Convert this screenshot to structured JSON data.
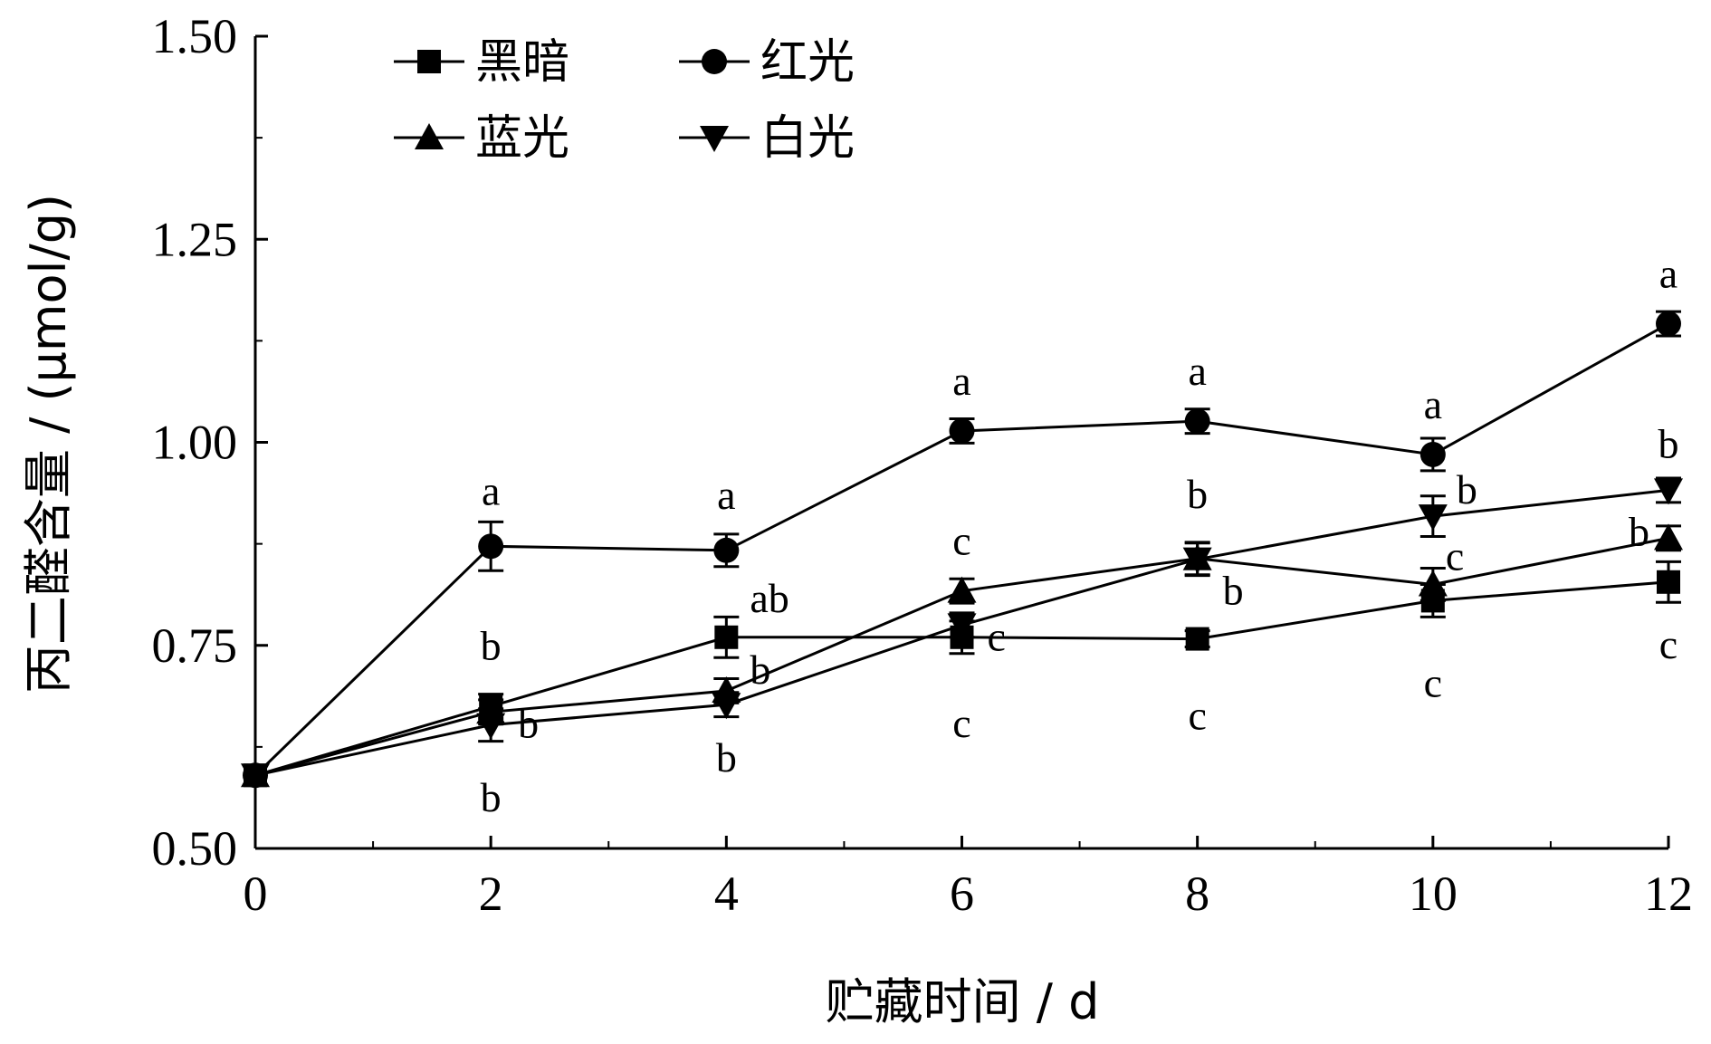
{
  "chart_data": {
    "type": "line",
    "xlabel": "贮藏时间 / d",
    "ylabel": "丙二醛含量 / (μmol/g)",
    "xlim": [
      0,
      12
    ],
    "ylim": [
      0.5,
      1.5
    ],
    "x_ticks": [
      "0",
      "2",
      "4",
      "6",
      "8",
      "10",
      "12"
    ],
    "y_ticks": [
      "0.50",
      "0.75",
      "1.00",
      "1.25",
      "1.50"
    ],
    "x": [
      0,
      2,
      4,
      6,
      8,
      10,
      12
    ],
    "grid": false,
    "legend_position": "top-left",
    "series": [
      {
        "name": "黑暗",
        "marker": "square",
        "values": [
          0.59,
          0.675,
          0.76,
          0.76,
          0.758,
          0.805,
          0.828
        ],
        "errors": [
          0.005,
          0.015,
          0.025,
          0.02,
          0.01,
          0.02,
          0.025
        ],
        "sig_labels": [
          "",
          "b",
          "ab",
          "c",
          "c",
          "c",
          "c"
        ]
      },
      {
        "name": "红光",
        "marker": "circle",
        "values": [
          0.59,
          0.872,
          0.867,
          1.014,
          1.026,
          0.985,
          1.146
        ],
        "errors": [
          0.005,
          0.03,
          0.02,
          0.015,
          0.015,
          0.02,
          0.015
        ],
        "sig_labels": [
          "",
          "a",
          "a",
          "a",
          "a",
          "a",
          "a"
        ]
      },
      {
        "name": "蓝光",
        "marker": "triangle-up",
        "values": [
          0.59,
          0.668,
          0.694,
          0.817,
          0.857,
          0.825,
          0.882
        ],
        "errors": [
          0.005,
          0.015,
          0.015,
          0.015,
          0.02,
          0.02,
          0.015
        ],
        "sig_labels": [
          "",
          "b",
          "b",
          "c",
          "b",
          "c",
          "b"
        ]
      },
      {
        "name": "白光",
        "marker": "triangle-down",
        "values": [
          0.59,
          0.652,
          0.677,
          0.775,
          0.856,
          0.909,
          0.941
        ],
        "errors": [
          0.005,
          0.02,
          0.015,
          0.015,
          0.02,
          0.025,
          0.015
        ],
        "sig_labels": [
          "",
          "b",
          "b",
          "c",
          "b",
          "b",
          "b"
        ]
      }
    ]
  }
}
